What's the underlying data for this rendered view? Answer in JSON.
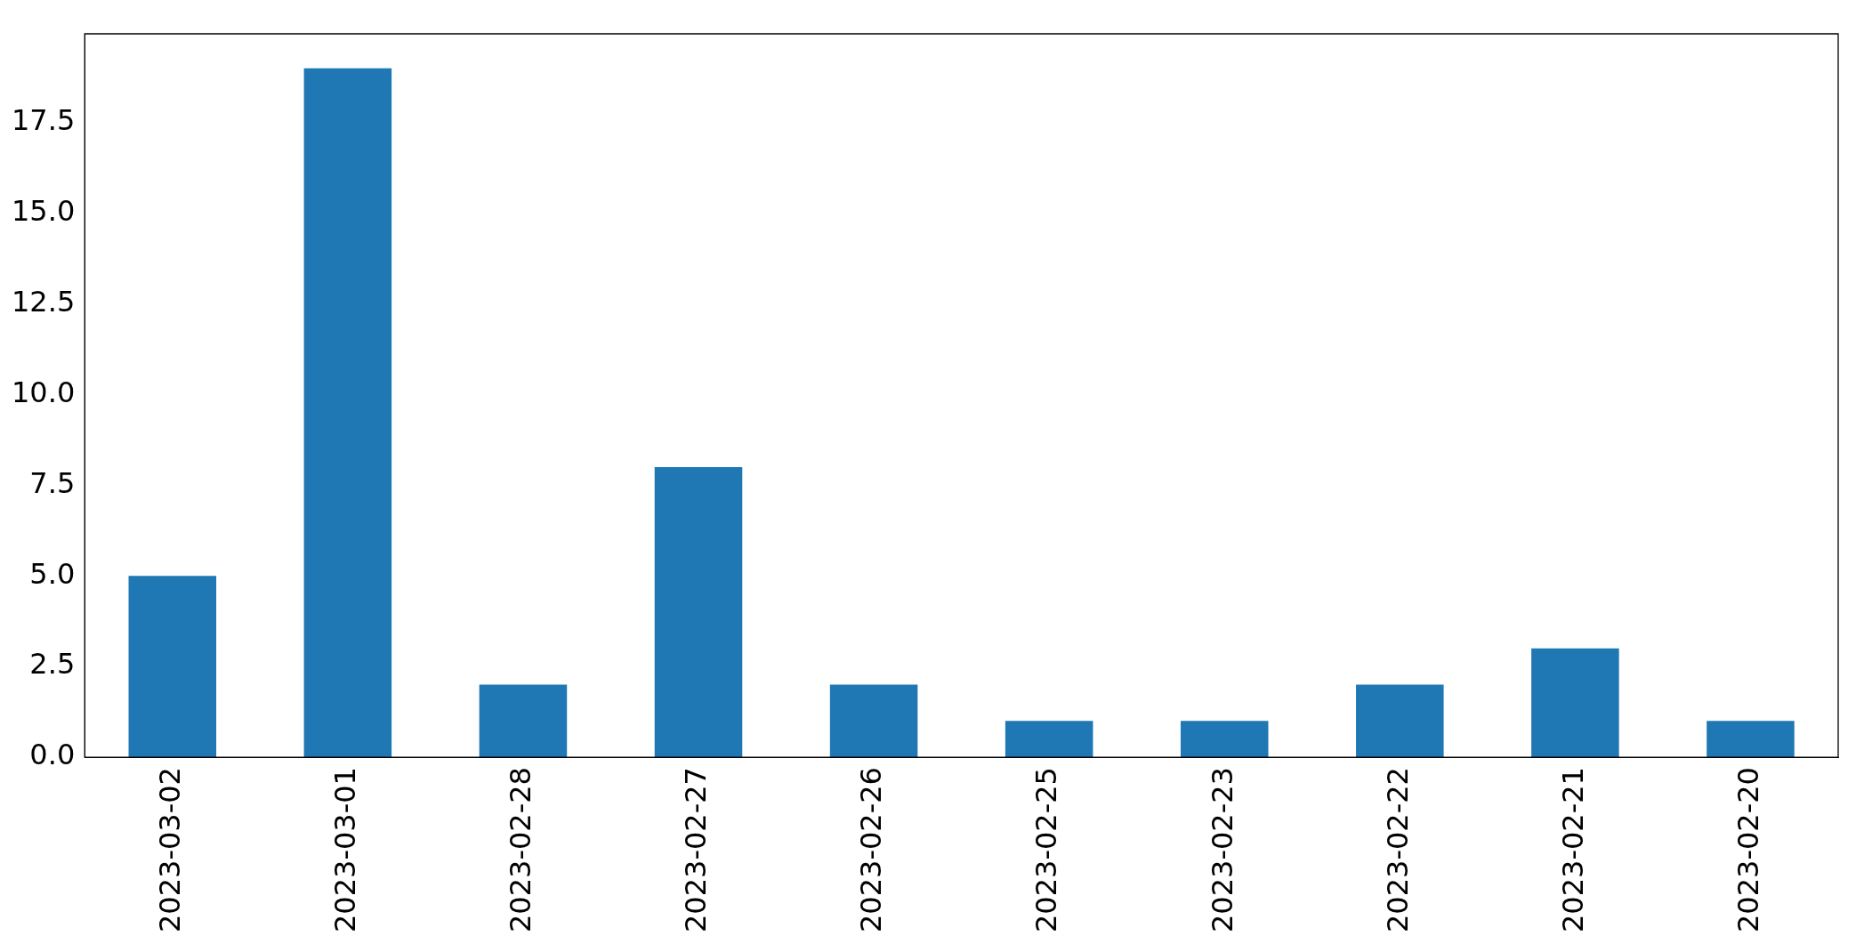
{
  "chart_data": {
    "type": "bar",
    "categories": [
      "2023-03-02",
      "2023-03-01",
      "2023-02-28",
      "2023-02-27",
      "2023-02-26",
      "2023-02-25",
      "2023-02-23",
      "2023-02-22",
      "2023-02-21",
      "2023-02-20"
    ],
    "values": [
      5,
      19,
      2,
      8,
      2,
      1,
      1,
      2,
      3,
      1
    ],
    "color": "#1f77b4",
    "ylim": [
      0,
      19.95
    ],
    "yticks": [
      {
        "value": 0,
        "label": "0.0"
      },
      {
        "value": 2.5,
        "label": "2.5"
      },
      {
        "value": 5,
        "label": "5.0"
      },
      {
        "value": 7.5,
        "label": "7.5"
      },
      {
        "value": 10,
        "label": "10.0"
      },
      {
        "value": 12.5,
        "label": "12.5"
      },
      {
        "value": 15,
        "label": "15.0"
      },
      {
        "value": 17.5,
        "label": "17.5"
      }
    ]
  }
}
